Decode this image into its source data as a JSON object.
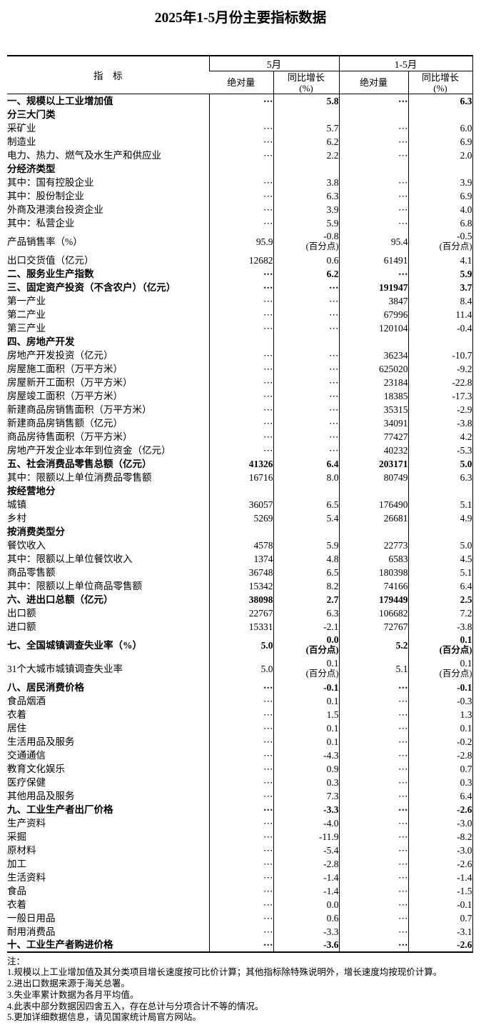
{
  "title": "2025年1-5月份主要指标数据",
  "table": {
    "indicator_header": "指　标",
    "col_groups": [
      {
        "label": "5月"
      },
      {
        "label": "1-5月"
      }
    ],
    "sub_headers": {
      "absolute": "绝对量",
      "yoy_line1": "同比增长",
      "yoy_line2": "(%)"
    },
    "rows": [
      {
        "label": "一、规模以上工业增加值",
        "bold": true,
        "may_abs": "⋯",
        "may_yoy": "5.8",
        "cum_abs": "⋯",
        "cum_yoy": "6.3"
      },
      {
        "label": "分三大门类",
        "bold": true
      },
      {
        "label": "采矿业",
        "may_abs": "⋯",
        "may_yoy": "5.7",
        "cum_abs": "⋯",
        "cum_yoy": "6.0"
      },
      {
        "label": "制造业",
        "may_abs": "⋯",
        "may_yoy": "6.2",
        "cum_abs": "⋯",
        "cum_yoy": "6.9"
      },
      {
        "label": "电力、热力、燃气及水生产和供应业",
        "may_abs": "⋯",
        "may_yoy": "2.2",
        "cum_abs": "⋯",
        "cum_yoy": "2.0"
      },
      {
        "label": "分经济类型",
        "bold": true
      },
      {
        "label": "其中：国有控股企业",
        "may_abs": "⋯",
        "may_yoy": "3.8",
        "cum_abs": "⋯",
        "cum_yoy": "3.9"
      },
      {
        "label": "其中：股份制企业",
        "may_abs": "⋯",
        "may_yoy": "6.3",
        "cum_abs": "⋯",
        "cum_yoy": "6.9"
      },
      {
        "label": "外商及港澳台投资企业",
        "indent": 4,
        "may_abs": "⋯",
        "may_yoy": "3.9",
        "cum_abs": "⋯",
        "cum_yoy": "4.0"
      },
      {
        "label": "其中：私营企业",
        "may_abs": "⋯",
        "may_yoy": "5.9",
        "cum_abs": "⋯",
        "cum_yoy": "6.8"
      },
      {
        "label": "产品销售率（%）",
        "tall": true,
        "may_abs": "95.9",
        "may_yoy": "-0.8",
        "may_note": "(百分点)",
        "cum_abs": "95.4",
        "cum_yoy": "-0.5",
        "cum_note": "(百分点)"
      },
      {
        "label": "出口交货值（亿元）",
        "may_abs": "12682",
        "may_yoy": "0.6",
        "cum_abs": "61491",
        "cum_yoy": "4.1"
      },
      {
        "label": "二、服务业生产指数",
        "bold": true,
        "may_abs": "⋯",
        "may_yoy": "6.2",
        "cum_abs": "⋯",
        "cum_yoy": "5.9"
      },
      {
        "label": "三、固定资产投资（不含农户）（亿元）",
        "bold": true,
        "may_abs": "⋯",
        "may_yoy": "⋯",
        "cum_abs": "191947",
        "cum_yoy": "3.7"
      },
      {
        "label": "第一产业",
        "may_abs": "⋯",
        "may_yoy": "⋯",
        "cum_abs": "3847",
        "cum_yoy": "8.4"
      },
      {
        "label": "第二产业",
        "may_abs": "⋯",
        "may_yoy": "⋯",
        "cum_abs": "67996",
        "cum_yoy": "11.4"
      },
      {
        "label": "第三产业",
        "may_abs": "⋯",
        "may_yoy": "⋯",
        "cum_abs": "120104",
        "cum_yoy": "-0.4"
      },
      {
        "label": "四、房地产开发",
        "bold": true
      },
      {
        "label": "房地产开发投资（亿元）",
        "may_abs": "⋯",
        "may_yoy": "⋯",
        "cum_abs": "36234",
        "cum_yoy": "-10.7"
      },
      {
        "label": "房屋施工面积（万平方米）",
        "may_abs": "⋯",
        "may_yoy": "⋯",
        "cum_abs": "625020",
        "cum_yoy": "-9.2"
      },
      {
        "label": "房屋新开工面积（万平方米）",
        "may_abs": "⋯",
        "may_yoy": "⋯",
        "cum_abs": "23184",
        "cum_yoy": "-22.8"
      },
      {
        "label": "房屋竣工面积（万平方米）",
        "may_abs": "⋯",
        "may_yoy": "⋯",
        "cum_abs": "18385",
        "cum_yoy": "-17.3"
      },
      {
        "label": "新建商品房销售面积（万平方米）",
        "may_abs": "⋯",
        "may_yoy": "⋯",
        "cum_abs": "35315",
        "cum_yoy": "-2.9"
      },
      {
        "label": "新建商品房销售额（亿元）",
        "may_abs": "⋯",
        "may_yoy": "⋯",
        "cum_abs": "34091",
        "cum_yoy": "-3.8"
      },
      {
        "label": "商品房待售面积（万平方米）",
        "may_abs": "⋯",
        "may_yoy": "⋯",
        "cum_abs": "77427",
        "cum_yoy": "4.2"
      },
      {
        "label": "房地产开发企业本年到位资金（亿元）",
        "may_abs": "⋯",
        "may_yoy": "⋯",
        "cum_abs": "40232",
        "cum_yoy": "-5.3"
      },
      {
        "label": "五、社会消费品零售总额（亿元）",
        "bold": true,
        "may_abs": "41326",
        "may_yoy": "6.4",
        "cum_abs": "203171",
        "cum_yoy": "5.0"
      },
      {
        "label": "其中：限额以上单位消费品零售额",
        "may_abs": "16716",
        "may_yoy": "8.0",
        "cum_abs": "80749",
        "cum_yoy": "6.3"
      },
      {
        "label": "按经营地分",
        "bold": true
      },
      {
        "label": "城镇",
        "may_abs": "36057",
        "may_yoy": "6.5",
        "cum_abs": "176490",
        "cum_yoy": "5.1"
      },
      {
        "label": "乡村",
        "may_abs": "5269",
        "may_yoy": "5.4",
        "cum_abs": "26681",
        "cum_yoy": "4.9"
      },
      {
        "label": "按消费类型分",
        "bold": true
      },
      {
        "label": "餐饮收入",
        "may_abs": "4578",
        "may_yoy": "5.9",
        "cum_abs": "22773",
        "cum_yoy": "5.0"
      },
      {
        "label": "其中：限额以上单位餐饮收入",
        "may_abs": "1374",
        "may_yoy": "4.8",
        "cum_abs": "6583",
        "cum_yoy": "4.5"
      },
      {
        "label": "商品零售额",
        "may_abs": "36748",
        "may_yoy": "6.5",
        "cum_abs": "180398",
        "cum_yoy": "5.1"
      },
      {
        "label": "其中：限额以上单位商品零售额",
        "may_abs": "15342",
        "may_yoy": "8.2",
        "cum_abs": "74166",
        "cum_yoy": "6.4"
      },
      {
        "label": "六、进出口总额（亿元）",
        "bold": true,
        "may_abs": "38098",
        "may_yoy": "2.7",
        "cum_abs": "179449",
        "cum_yoy": "2.5"
      },
      {
        "label": "出口额",
        "indent": 2,
        "may_abs": "22767",
        "may_yoy": "6.3",
        "cum_abs": "106682",
        "cum_yoy": "7.2"
      },
      {
        "label": "进口额",
        "indent": 2,
        "may_abs": "15331",
        "may_yoy": "-2.1",
        "cum_abs": "72767",
        "cum_yoy": "-3.8"
      },
      {
        "label": "七、全国城镇调查失业率（%）",
        "bold": true,
        "tall": true,
        "may_abs": "5.0",
        "may_yoy": "0.0",
        "may_note": "(百分点)",
        "cum_abs": "5.2",
        "cum_yoy": "0.1",
        "cum_note": "(百分点)"
      },
      {
        "label": "31个大城市城镇调查失业率",
        "indent": 2,
        "tall": true,
        "may_abs": "5.0",
        "may_yoy": "0.1",
        "may_note": "(百分点)",
        "cum_abs": "5.1",
        "cum_yoy": "0.1",
        "cum_note": "(百分点)"
      },
      {
        "label": "八、居民消费价格",
        "bold": true,
        "may_abs": "⋯",
        "may_yoy": "-0.1",
        "cum_abs": "⋯",
        "cum_yoy": "-0.1"
      },
      {
        "label": "食品烟酒",
        "indent": 1,
        "may_abs": "⋯",
        "may_yoy": "0.1",
        "cum_abs": "⋯",
        "cum_yoy": "-0.3"
      },
      {
        "label": "衣着",
        "indent": 1,
        "may_abs": "⋯",
        "may_yoy": "1.5",
        "cum_abs": "⋯",
        "cum_yoy": "1.3"
      },
      {
        "label": "居住",
        "indent": 1,
        "may_abs": "⋯",
        "may_yoy": "0.1",
        "cum_abs": "⋯",
        "cum_yoy": "0.1"
      },
      {
        "label": "生活用品及服务",
        "indent": 1,
        "may_abs": "⋯",
        "may_yoy": "0.1",
        "cum_abs": "⋯",
        "cum_yoy": "-0.2"
      },
      {
        "label": "交通通信",
        "indent": 1,
        "may_abs": "⋯",
        "may_yoy": "-4.3",
        "cum_abs": "⋯",
        "cum_yoy": "-2.8"
      },
      {
        "label": "教育文化娱乐",
        "indent": 1,
        "may_abs": "⋯",
        "may_yoy": "0.9",
        "cum_abs": "⋯",
        "cum_yoy": "0.7"
      },
      {
        "label": "医疗保健",
        "indent": 1,
        "may_abs": "⋯",
        "may_yoy": "0.3",
        "cum_abs": "⋯",
        "cum_yoy": "0.3"
      },
      {
        "label": "其他用品及服务",
        "indent": 1,
        "may_abs": "⋯",
        "may_yoy": "7.3",
        "cum_abs": "⋯",
        "cum_yoy": "6.4"
      },
      {
        "label": "九、工业生产者出厂价格",
        "bold": true,
        "may_abs": "⋯",
        "may_yoy": "-3.3",
        "cum_abs": "⋯",
        "cum_yoy": "-2.6"
      },
      {
        "label": "生产资料",
        "may_abs": "⋯",
        "may_yoy": "-4.0",
        "cum_abs": "⋯",
        "cum_yoy": "-3.0"
      },
      {
        "label": "采掘",
        "indent": 1,
        "may_abs": "⋯",
        "may_yoy": "-11.9",
        "cum_abs": "⋯",
        "cum_yoy": "-8.2"
      },
      {
        "label": "原材料",
        "indent": 1,
        "may_abs": "⋯",
        "may_yoy": "-5.4",
        "cum_abs": "⋯",
        "cum_yoy": "-3.0"
      },
      {
        "label": "加工",
        "indent": 1,
        "may_abs": "⋯",
        "may_yoy": "-2.8",
        "cum_abs": "⋯",
        "cum_yoy": "-2.6"
      },
      {
        "label": "生活资料",
        "may_abs": "⋯",
        "may_yoy": "-1.4",
        "cum_abs": "⋯",
        "cum_yoy": "-1.4"
      },
      {
        "label": "食品",
        "indent": 1,
        "may_abs": "⋯",
        "may_yoy": "-1.4",
        "cum_abs": "⋯",
        "cum_yoy": "-1.5"
      },
      {
        "label": "衣着",
        "indent": 1,
        "may_abs": "⋯",
        "may_yoy": "0.0",
        "cum_abs": "⋯",
        "cum_yoy": "-0.1"
      },
      {
        "label": "一般日用品",
        "indent": 1,
        "may_abs": "⋯",
        "may_yoy": "0.6",
        "cum_abs": "⋯",
        "cum_yoy": "0.7"
      },
      {
        "label": "耐用消费品",
        "indent": 1,
        "may_abs": "⋯",
        "may_yoy": "-3.3",
        "cum_abs": "⋯",
        "cum_yoy": "-3.1"
      },
      {
        "label": "十、工业生产者购进价格",
        "bold": true,
        "may_abs": "⋯",
        "may_yoy": "-3.6",
        "cum_abs": "⋯",
        "cum_yoy": "-2.6"
      }
    ]
  },
  "notes": {
    "label": "注：",
    "items": [
      "1.规模以上工业增加值及其分类项目增长速度按可比价计算；其他指标除特殊说明外，增长速度均按现价计算。",
      "2.进出口数据来源于海关总署。",
      "3.失业率累计数据为各月平均值。",
      "4.此表中部分数据因四舍五入，存在总计与分项合计不等的情况。",
      "5.更加详细数据信息，请见国家统计局官方网站。"
    ]
  }
}
